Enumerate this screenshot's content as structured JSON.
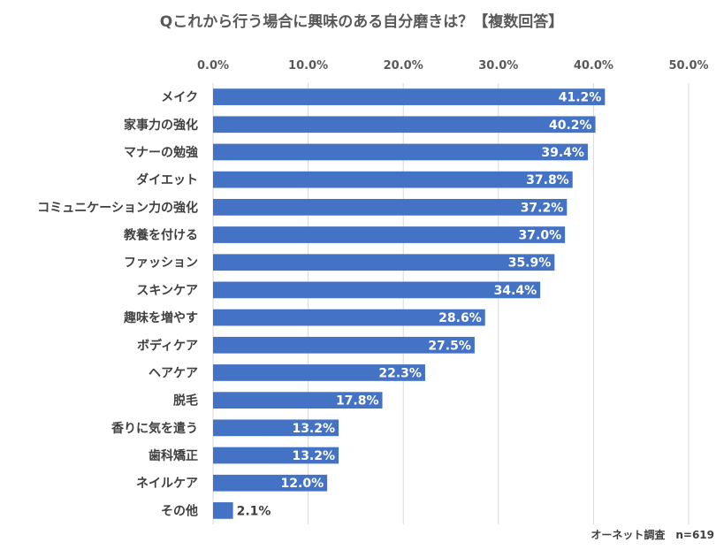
{
  "chart_data": {
    "type": "bar",
    "orientation": "horizontal",
    "title": "Qこれから行う場合に興味のある自分磨きは？【複数回答】",
    "categories": [
      "メイク",
      "家事力の強化",
      "マナーの勉強",
      "ダイエット",
      "コミュニケーション力の強化",
      "教養を付ける",
      "ファッション",
      "スキンケア",
      "趣味を増やす",
      "ボディケア",
      "ヘアケア",
      "脱毛",
      "香りに気を遣う",
      "歯科矯正",
      "ネイルケア",
      "その他"
    ],
    "values": [
      41.2,
      40.2,
      39.4,
      37.8,
      37.2,
      37.0,
      35.9,
      34.4,
      28.6,
      27.5,
      22.3,
      17.8,
      13.2,
      13.2,
      12.0,
      2.1
    ],
    "value_labels": [
      "41.2%",
      "40.2%",
      "39.4%",
      "37.8%",
      "37.2%",
      "37.0%",
      "35.9%",
      "34.4%",
      "28.6%",
      "27.5%",
      "22.3%",
      "17.8%",
      "13.2%",
      "13.2%",
      "12.0%",
      "2.1%"
    ],
    "xlim": [
      0,
      50
    ],
    "x_ticks": [
      0,
      10,
      20,
      30,
      40,
      50
    ],
    "x_tick_labels": [
      "0.0%",
      "10.0%",
      "20.0%",
      "30.0%",
      "40.0%",
      "50.0%"
    ],
    "axis_position": "top",
    "grid": true,
    "bar_color": "#4472c4"
  },
  "footnote": "オーネット調査　n=619"
}
